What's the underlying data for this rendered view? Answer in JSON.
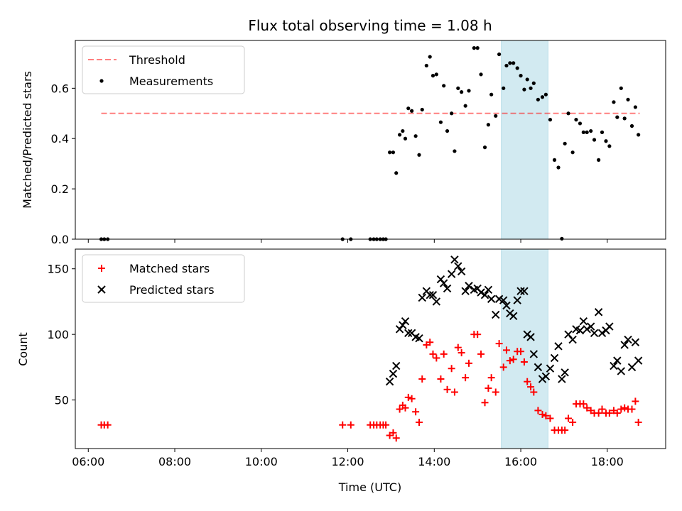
{
  "chart_data": {
    "type": "scatter",
    "title": "Flux total observing time = 1.08 h",
    "xlabel": "Time (UTC)",
    "x_unit": "hours UTC",
    "x_ticks": [
      6,
      8,
      10,
      12,
      14,
      16,
      18
    ],
    "x_tick_labels": [
      "06:00",
      "08:00",
      "10:00",
      "12:00",
      "14:00",
      "16:00",
      "18:00"
    ],
    "xlim": [
      5.7,
      19.35
    ],
    "highlight_span": {
      "x": [
        15.55,
        16.63
      ],
      "color": "#add8e6"
    },
    "top": {
      "ylabel": "Matched/Predicted stars",
      "ylim": [
        0,
        0.79
      ],
      "y_ticks": [
        0.0,
        0.2,
        0.4,
        0.6
      ],
      "y_tick_labels": [
        "0.0",
        "0.2",
        "0.4",
        "0.6"
      ],
      "legend": {
        "placement": "upper-left",
        "entries": [
          "Threshold",
          "Measurements"
        ]
      },
      "threshold": {
        "name": "Threshold",
        "y": 0.5,
        "x": [
          6.3,
          18.75
        ],
        "color": "#ff0000",
        "opacity": 0.5
      },
      "measurements": {
        "name": "Measurements",
        "color": "#000000",
        "points": [
          [
            6.3,
            0
          ],
          [
            6.37,
            0
          ],
          [
            6.45,
            0
          ],
          [
            11.88,
            0
          ],
          [
            12.07,
            0
          ],
          [
            12.52,
            0
          ],
          [
            12.6,
            0
          ],
          [
            12.67,
            0
          ],
          [
            12.75,
            0
          ],
          [
            12.82,
            0
          ],
          [
            12.88,
            0
          ],
          [
            12.97,
            0.345
          ],
          [
            13.05,
            0.345
          ],
          [
            13.12,
            0.263
          ],
          [
            13.2,
            0.415
          ],
          [
            13.27,
            0.43
          ],
          [
            13.33,
            0.4
          ],
          [
            13.4,
            0.52
          ],
          [
            13.48,
            0.51
          ],
          [
            13.57,
            0.41
          ],
          [
            13.65,
            0.335
          ],
          [
            13.72,
            0.515
          ],
          [
            13.82,
            0.69
          ],
          [
            13.9,
            0.725
          ],
          [
            13.97,
            0.65
          ],
          [
            14.05,
            0.655
          ],
          [
            14.15,
            0.465
          ],
          [
            14.22,
            0.61
          ],
          [
            14.3,
            0.43
          ],
          [
            14.4,
            0.5
          ],
          [
            14.47,
            0.35
          ],
          [
            14.55,
            0.6
          ],
          [
            14.63,
            0.585
          ],
          [
            14.72,
            0.53
          ],
          [
            14.8,
            0.59
          ],
          [
            14.92,
            0.76
          ],
          [
            15.0,
            0.76
          ],
          [
            15.08,
            0.655
          ],
          [
            15.17,
            0.365
          ],
          [
            15.25,
            0.455
          ],
          [
            15.32,
            0.575
          ],
          [
            15.42,
            0.49
          ],
          [
            15.5,
            0.735
          ],
          [
            15.6,
            0.6
          ],
          [
            15.67,
            0.69
          ],
          [
            15.75,
            0.7
          ],
          [
            15.83,
            0.7
          ],
          [
            15.92,
            0.68
          ],
          [
            16.0,
            0.65
          ],
          [
            16.08,
            0.595
          ],
          [
            16.15,
            0.635
          ],
          [
            16.23,
            0.6
          ],
          [
            16.3,
            0.62
          ],
          [
            16.4,
            0.555
          ],
          [
            16.5,
            0.565
          ],
          [
            16.58,
            0.575
          ],
          [
            16.68,
            0.475
          ],
          [
            16.78,
            0.315
          ],
          [
            16.87,
            0.285
          ],
          [
            16.95,
            0.002
          ],
          [
            17.02,
            0.38
          ],
          [
            17.1,
            0.5
          ],
          [
            17.2,
            0.345
          ],
          [
            17.28,
            0.475
          ],
          [
            17.37,
            0.46
          ],
          [
            17.45,
            0.425
          ],
          [
            17.53,
            0.425
          ],
          [
            17.62,
            0.43
          ],
          [
            17.7,
            0.395
          ],
          [
            17.8,
            0.315
          ],
          [
            17.88,
            0.425
          ],
          [
            17.97,
            0.39
          ],
          [
            18.05,
            0.37
          ],
          [
            18.15,
            0.545
          ],
          [
            18.23,
            0.485
          ],
          [
            18.32,
            0.6
          ],
          [
            18.4,
            0.48
          ],
          [
            18.48,
            0.555
          ],
          [
            18.57,
            0.45
          ],
          [
            18.65,
            0.525
          ],
          [
            18.72,
            0.415
          ]
        ]
      }
    },
    "bottom": {
      "ylabel": "Count",
      "ylim": [
        13,
        165
      ],
      "y_ticks": [
        50,
        100,
        150
      ],
      "y_tick_labels": [
        "50",
        "100",
        "150"
      ],
      "legend": {
        "placement": "upper-left",
        "entries": [
          "Matched stars",
          "Predicted stars"
        ]
      },
      "matched": {
        "name": "Matched stars",
        "color": "#ff0000",
        "points": [
          [
            6.3,
            31
          ],
          [
            6.37,
            31
          ],
          [
            6.45,
            31
          ],
          [
            11.88,
            31
          ],
          [
            12.07,
            31
          ],
          [
            12.52,
            31
          ],
          [
            12.6,
            31
          ],
          [
            12.67,
            31
          ],
          [
            12.75,
            31
          ],
          [
            12.82,
            31
          ],
          [
            12.88,
            31
          ],
          [
            12.97,
            23
          ],
          [
            13.05,
            25
          ],
          [
            13.12,
            21
          ],
          [
            13.2,
            43
          ],
          [
            13.27,
            46
          ],
          [
            13.33,
            44
          ],
          [
            13.4,
            52
          ],
          [
            13.48,
            51
          ],
          [
            13.57,
            41
          ],
          [
            13.65,
            33
          ],
          [
            13.72,
            66
          ],
          [
            13.82,
            92
          ],
          [
            13.9,
            94
          ],
          [
            13.97,
            85
          ],
          [
            14.05,
            82
          ],
          [
            14.15,
            66
          ],
          [
            14.22,
            85
          ],
          [
            14.3,
            58
          ],
          [
            14.4,
            74
          ],
          [
            14.47,
            56
          ],
          [
            14.55,
            90
          ],
          [
            14.63,
            86
          ],
          [
            14.72,
            67
          ],
          [
            14.8,
            78
          ],
          [
            14.92,
            100
          ],
          [
            15.0,
            100
          ],
          [
            15.08,
            85
          ],
          [
            15.17,
            48
          ],
          [
            15.25,
            59
          ],
          [
            15.32,
            67
          ],
          [
            15.42,
            56
          ],
          [
            15.5,
            93
          ],
          [
            15.6,
            75
          ],
          [
            15.67,
            88
          ],
          [
            15.75,
            80
          ],
          [
            15.83,
            81
          ],
          [
            15.92,
            87
          ],
          [
            16.0,
            87
          ],
          [
            16.08,
            79
          ],
          [
            16.15,
            64
          ],
          [
            16.23,
            60
          ],
          [
            16.3,
            56
          ],
          [
            16.4,
            42
          ],
          [
            16.5,
            39
          ],
          [
            16.58,
            38
          ],
          [
            16.68,
            36
          ],
          [
            16.78,
            27
          ],
          [
            16.87,
            27
          ],
          [
            16.95,
            27
          ],
          [
            17.02,
            27
          ],
          [
            17.1,
            36
          ],
          [
            17.2,
            33
          ],
          [
            17.28,
            47
          ],
          [
            17.37,
            47
          ],
          [
            17.45,
            47
          ],
          [
            17.53,
            44
          ],
          [
            17.62,
            42
          ],
          [
            17.7,
            40
          ],
          [
            17.8,
            40
          ],
          [
            17.88,
            43
          ],
          [
            17.97,
            40
          ],
          [
            18.05,
            40
          ],
          [
            18.15,
            42
          ],
          [
            18.23,
            40
          ],
          [
            18.32,
            43
          ],
          [
            18.4,
            44
          ],
          [
            18.48,
            43
          ],
          [
            18.57,
            43
          ],
          [
            18.65,
            49
          ],
          [
            18.72,
            33
          ]
        ]
      },
      "predicted": {
        "name": "Predicted stars",
        "color": "#000000",
        "points": [
          [
            12.97,
            64
          ],
          [
            13.05,
            70
          ],
          [
            13.12,
            76
          ],
          [
            13.2,
            104
          ],
          [
            13.27,
            107
          ],
          [
            13.33,
            110
          ],
          [
            13.4,
            101
          ],
          [
            13.48,
            101
          ],
          [
            13.57,
            98
          ],
          [
            13.65,
            97
          ],
          [
            13.72,
            128
          ],
          [
            13.82,
            133
          ],
          [
            13.9,
            130
          ],
          [
            13.97,
            130
          ],
          [
            14.05,
            125
          ],
          [
            14.15,
            142
          ],
          [
            14.22,
            139
          ],
          [
            14.3,
            135
          ],
          [
            14.4,
            146
          ],
          [
            14.47,
            157
          ],
          [
            14.55,
            152
          ],
          [
            14.63,
            148
          ],
          [
            14.72,
            133
          ],
          [
            14.8,
            137
          ],
          [
            14.92,
            134
          ],
          [
            15.0,
            135
          ],
          [
            15.08,
            132
          ],
          [
            15.17,
            130
          ],
          [
            15.25,
            134
          ],
          [
            15.32,
            127
          ],
          [
            15.42,
            115
          ],
          [
            15.5,
            127
          ],
          [
            15.6,
            126
          ],
          [
            15.67,
            122
          ],
          [
            15.75,
            116
          ],
          [
            15.83,
            114
          ],
          [
            15.92,
            126
          ],
          [
            16.0,
            133
          ],
          [
            16.08,
            133
          ],
          [
            16.15,
            100
          ],
          [
            16.23,
            98
          ],
          [
            16.3,
            85
          ],
          [
            16.4,
            75
          ],
          [
            16.5,
            66
          ],
          [
            16.58,
            68
          ],
          [
            16.68,
            74
          ],
          [
            16.78,
            82
          ],
          [
            16.87,
            91
          ],
          [
            16.95,
            66
          ],
          [
            17.02,
            71
          ],
          [
            17.1,
            100
          ],
          [
            17.2,
            96
          ],
          [
            17.28,
            104
          ],
          [
            17.37,
            103
          ],
          [
            17.45,
            110
          ],
          [
            17.53,
            104
          ],
          [
            17.62,
            106
          ],
          [
            17.7,
            101
          ],
          [
            17.8,
            117
          ],
          [
            17.88,
            101
          ],
          [
            17.97,
            103
          ],
          [
            18.05,
            106
          ],
          [
            18.15,
            76
          ],
          [
            18.23,
            80
          ],
          [
            18.32,
            72
          ],
          [
            18.4,
            92
          ],
          [
            18.48,
            96
          ],
          [
            18.57,
            75
          ],
          [
            18.65,
            94
          ],
          [
            18.72,
            80
          ]
        ]
      }
    }
  }
}
